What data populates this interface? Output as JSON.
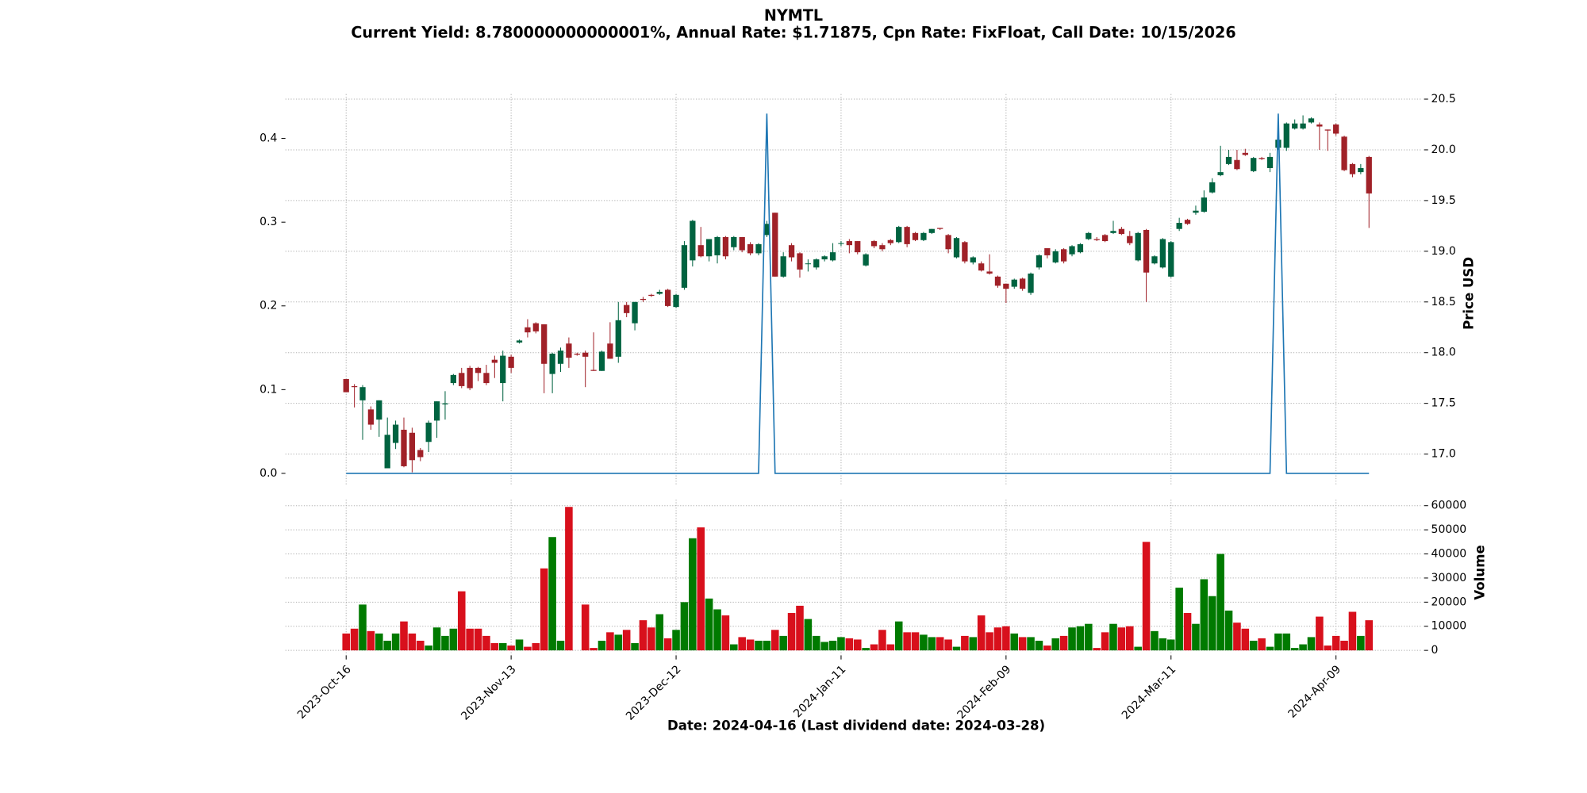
{
  "chart_data": [
    {
      "type": "candlestick",
      "title": "NYMTL",
      "subtitle": "Current Yield: 8.780000000000001%, Annual Rate: $1.71875, Cpn Rate: FixFloat, Call Date: 10/15/2026",
      "x_label": "Date: 2024-04-16   (Last dividend date: 2024-03-28)",
      "y_label": "Price USD",
      "categories": [
        "2023-Oct-16",
        null,
        null,
        null,
        null,
        null,
        null,
        null,
        null,
        null,
        null,
        null,
        null,
        null,
        null,
        null,
        null,
        null,
        null,
        null,
        "2023-Nov-13",
        null,
        null,
        null,
        null,
        null,
        null,
        null,
        null,
        null,
        null,
        null,
        null,
        null,
        null,
        null,
        null,
        null,
        null,
        null,
        "2023-Dec-12",
        null,
        null,
        null,
        null,
        null,
        null,
        null,
        null,
        null,
        null,
        null,
        null,
        null,
        null,
        null,
        null,
        null,
        null,
        null,
        "2024-Jan-11",
        null,
        null,
        null,
        null,
        null,
        null,
        null,
        null,
        null,
        null,
        null,
        null,
        null,
        null,
        null,
        null,
        null,
        null,
        null,
        "2024-Feb-09",
        null,
        null,
        null,
        null,
        null,
        null,
        null,
        null,
        null,
        null,
        null,
        null,
        null,
        null,
        null,
        null,
        null,
        null,
        null,
        "2024-Mar-11",
        null,
        null,
        null,
        null,
        null,
        null,
        null,
        null,
        null,
        null,
        null,
        null,
        null,
        null,
        null,
        null,
        null,
        null,
        null,
        "2024-Apr-09",
        null,
        null,
        null,
        null
      ],
      "open": [
        17.74,
        17.67,
        17.53,
        17.44,
        17.34,
        16.86,
        17.11,
        17.24,
        17.21,
        17.04,
        17.12,
        17.33,
        17.49,
        17.7,
        17.8,
        17.85,
        17.85,
        17.8,
        17.93,
        17.7,
        17.96,
        18.1,
        18.25,
        18.29,
        18.28,
        17.79,
        17.89,
        18.09,
        17.99,
        18.0,
        17.83,
        17.82,
        18.09,
        17.96,
        18.47,
        18.29,
        18.53,
        18.57,
        18.58,
        18.62,
        18.45,
        18.64,
        18.91,
        19.06,
        18.95,
        18.96,
        19.14,
        19.04,
        19.14,
        19.07,
        18.98,
        19.16,
        19.38,
        18.75,
        19.06,
        18.98,
        18.88,
        18.84,
        18.92,
        18.91,
        19.08,
        19.1,
        19.1,
        18.86,
        19.1,
        19.06,
        19.11,
        19.09,
        19.24,
        19.18,
        19.11,
        19.18,
        19.23,
        19.16,
        18.94,
        19.09,
        18.89,
        18.88,
        18.8,
        18.75,
        18.68,
        18.65,
        18.73,
        18.59,
        18.84,
        19.03,
        18.89,
        19.02,
        18.97,
        18.99,
        19.12,
        19.12,
        19.16,
        19.18,
        19.22,
        19.15,
        18.91,
        19.21,
        18.88,
        18.84,
        18.75,
        19.22,
        19.31,
        19.38,
        19.39,
        19.58,
        19.75,
        19.86,
        19.9,
        19.97,
        19.79,
        19.92,
        19.82,
        20.02,
        20.02,
        20.21,
        20.21,
        20.27,
        20.25,
        20.2,
        20.25,
        20.13,
        19.86,
        19.78,
        19.93
      ],
      "high": [
        17.74,
        17.69,
        17.68,
        17.47,
        17.53,
        17.36,
        17.33,
        17.36,
        17.26,
        17.06,
        17.33,
        17.52,
        17.62,
        17.79,
        17.85,
        17.87,
        17.86,
        17.88,
        17.97,
        18.02,
        17.98,
        18.13,
        18.33,
        18.3,
        18.28,
        18.0,
        18.05,
        18.15,
        18.0,
        18.02,
        18.2,
        18.02,
        18.3,
        18.5,
        18.5,
        18.5,
        18.55,
        18.58,
        18.62,
        18.63,
        18.58,
        19.1,
        19.31,
        19.24,
        19.12,
        19.15,
        19.15,
        19.15,
        19.14,
        19.09,
        19.08,
        19.3,
        19.38,
        18.99,
        19.08,
        18.99,
        18.92,
        18.93,
        18.96,
        19.08,
        19.1,
        19.12,
        19.1,
        18.98,
        19.11,
        19.08,
        19.12,
        19.25,
        19.25,
        19.19,
        19.19,
        19.22,
        19.23,
        19.17,
        19.14,
        19.1,
        18.95,
        18.9,
        18.97,
        18.76,
        18.68,
        18.73,
        18.74,
        18.79,
        18.97,
        19.03,
        19.02,
        19.03,
        19.06,
        19.08,
        19.19,
        19.14,
        19.17,
        19.3,
        19.24,
        19.2,
        19.19,
        19.22,
        18.96,
        19.13,
        19.1,
        19.33,
        19.32,
        19.45,
        19.6,
        19.72,
        20.04,
        20.0,
        20.0,
        20.01,
        19.93,
        19.93,
        19.97,
        20.15,
        20.27,
        20.3,
        20.34,
        20.32,
        20.27,
        20.2,
        20.26,
        20.14,
        19.87,
        19.86,
        19.94
      ],
      "low": [
        17.61,
        17.46,
        17.14,
        17.24,
        17.17,
        16.86,
        17.05,
        16.87,
        16.82,
        16.93,
        17.02,
        17.16,
        17.34,
        17.68,
        17.65,
        17.63,
        17.72,
        17.68,
        17.75,
        17.52,
        17.8,
        18.09,
        18.15,
        18.19,
        17.6,
        17.6,
        17.81,
        17.85,
        17.97,
        17.66,
        17.82,
        17.82,
        17.94,
        17.9,
        18.35,
        18.22,
        18.5,
        18.55,
        18.57,
        18.45,
        18.44,
        18.62,
        18.85,
        18.94,
        18.9,
        18.88,
        18.92,
        19.01,
        18.99,
        18.96,
        18.96,
        19.14,
        18.75,
        18.74,
        18.9,
        18.74,
        18.8,
        18.82,
        18.9,
        18.9,
        19.05,
        18.98,
        18.97,
        18.85,
        19.03,
        19.0,
        19.06,
        19.08,
        19.04,
        19.1,
        19.1,
        19.17,
        19.21,
        18.98,
        18.93,
        18.88,
        18.87,
        18.8,
        18.77,
        18.64,
        18.49,
        18.63,
        18.61,
        18.57,
        18.82,
        18.93,
        18.88,
        18.88,
        18.95,
        18.98,
        19.11,
        19.1,
        19.09,
        19.17,
        19.16,
        19.06,
        18.9,
        18.5,
        18.87,
        18.83,
        18.74,
        19.2,
        19.26,
        19.36,
        19.38,
        19.57,
        19.74,
        19.85,
        19.8,
        19.94,
        19.78,
        19.9,
        19.78,
        20.0,
        19.99,
        20.2,
        20.2,
        20.26,
        20.0,
        19.99,
        20.14,
        19.79,
        19.73,
        19.76,
        19.23
      ],
      "close": [
        17.61,
        17.66,
        17.66,
        17.29,
        17.53,
        17.19,
        17.29,
        16.88,
        16.94,
        16.97,
        17.31,
        17.52,
        17.5,
        17.78,
        17.67,
        17.65,
        17.8,
        17.7,
        17.9,
        17.97,
        17.85,
        18.12,
        18.2,
        18.21,
        17.89,
        17.99,
        18.02,
        17.95,
        17.98,
        17.96,
        17.82,
        18.01,
        17.94,
        18.32,
        18.39,
        18.5,
        18.52,
        18.56,
        18.6,
        18.46,
        18.57,
        19.06,
        19.3,
        18.95,
        19.12,
        19.14,
        18.95,
        19.14,
        19.01,
        18.98,
        19.07,
        19.27,
        18.75,
        18.95,
        18.94,
        18.82,
        18.88,
        18.92,
        18.95,
        18.99,
        19.08,
        19.06,
        18.99,
        18.97,
        19.05,
        19.02,
        19.08,
        19.24,
        19.07,
        19.11,
        19.18,
        19.22,
        19.22,
        19.02,
        19.13,
        18.9,
        18.94,
        18.81,
        18.78,
        18.66,
        18.63,
        18.72,
        18.63,
        18.78,
        18.96,
        18.96,
        19.0,
        18.9,
        19.05,
        19.07,
        19.18,
        19.11,
        19.1,
        19.2,
        19.17,
        19.08,
        19.18,
        18.79,
        18.95,
        19.12,
        19.09,
        19.28,
        19.27,
        19.4,
        19.53,
        19.68,
        19.78,
        19.93,
        19.81,
        19.95,
        19.92,
        19.91,
        19.93,
        20.1,
        20.26,
        20.26,
        20.26,
        20.31,
        20.23,
        20.19,
        20.16,
        19.8,
        19.76,
        19.82,
        19.57
      ],
      "up_color": "#006340",
      "down_color": "#a02128",
      "ylim": [
        16.69,
        20.55
      ],
      "yticks": [
        {
          "value": 17,
          "label": "17.0"
        },
        17.5,
        {
          "value": 18,
          "label": "18.0"
        },
        18.5,
        {
          "value": 19,
          "label": "19.0"
        },
        19.5,
        {
          "value": 20,
          "label": "20.0"
        },
        20.5
      ],
      "y2lim": [
        -0.0145,
        0.453
      ],
      "y2ticks": [
        {
          "value": 0,
          "label": "0.0"
        },
        0.1,
        0.2,
        0.3,
        0.4
      ],
      "series": [
        {
          "color": "#1f77b4",
          "axis": "y2",
          "values": [
            0,
            0,
            0,
            0,
            0,
            0,
            0,
            0,
            0,
            0,
            0,
            0,
            0,
            0,
            0,
            0,
            0,
            0,
            0,
            0,
            0,
            0,
            0,
            0,
            0,
            0,
            0,
            0,
            0,
            0,
            0,
            0,
            0,
            0,
            0,
            0,
            0,
            0,
            0,
            0,
            0,
            0,
            0,
            0,
            0,
            0,
            0,
            0,
            0,
            0,
            0,
            0.4297,
            0,
            0,
            0,
            0,
            0,
            0,
            0,
            0,
            0,
            0,
            0,
            0,
            0,
            0,
            0,
            0,
            0,
            0,
            0,
            0,
            0,
            0,
            0,
            0,
            0,
            0,
            0,
            0,
            0,
            0,
            0,
            0,
            0,
            0,
            0,
            0,
            0,
            0,
            0,
            0,
            0,
            0,
            0,
            0,
            0,
            0,
            0,
            0,
            0,
            0,
            0,
            0,
            0,
            0,
            0,
            0,
            0,
            0,
            0,
            0,
            0,
            0.4297,
            0,
            0,
            0,
            0,
            0,
            0,
            0,
            0,
            0,
            0,
            0
          ]
        }
      ],
      "grid": true
    },
    {
      "type": "bar",
      "y_label": "Volume",
      "values": [
        7000,
        9000,
        19000,
        8000,
        7000,
        4000,
        7000,
        12000,
        7000,
        4000,
        2000,
        9500,
        6000,
        9000,
        24500,
        9000,
        9000,
        6000,
        3000,
        3000,
        2000,
        4500,
        1500,
        3000,
        34000,
        47000,
        4000,
        59500,
        0,
        19000,
        1000,
        4000,
        7500,
        6500,
        8500,
        3000,
        12500,
        9500,
        15000,
        5000,
        8500,
        20000,
        46500,
        51000,
        21500,
        17000,
        14500,
        2500,
        5500,
        4500,
        4000,
        4000,
        8500,
        6000,
        15500,
        18500,
        13000,
        6000,
        3500,
        4000,
        5500,
        5000,
        4500,
        1000,
        2500,
        8500,
        2500,
        12000,
        7500,
        7500,
        6500,
        5500,
        5500,
        4500,
        1500,
        6000,
        5500,
        14500,
        7500,
        9500,
        10000,
        7000,
        5500,
        5500,
        4000,
        2000,
        5000,
        6000,
        9500,
        10000,
        11000,
        1000,
        7500,
        11000,
        9500,
        10000,
        1500,
        45000,
        8000,
        5000,
        4500,
        26000,
        15500,
        11000,
        29500,
        22500,
        40000,
        16500,
        11500,
        9000,
        4000,
        5000,
        1500,
        7000,
        7000,
        1000,
        2500,
        5500,
        14000,
        2000,
        6000,
        4000,
        16000,
        6000,
        12500
      ],
      "up_color": "#007a00",
      "down_color": "#d8101c",
      "ylim": [
        -2100,
        62500
      ],
      "yticks": [
        0,
        10000,
        20000,
        30000,
        40000,
        50000,
        60000
      ],
      "grid": true
    }
  ]
}
